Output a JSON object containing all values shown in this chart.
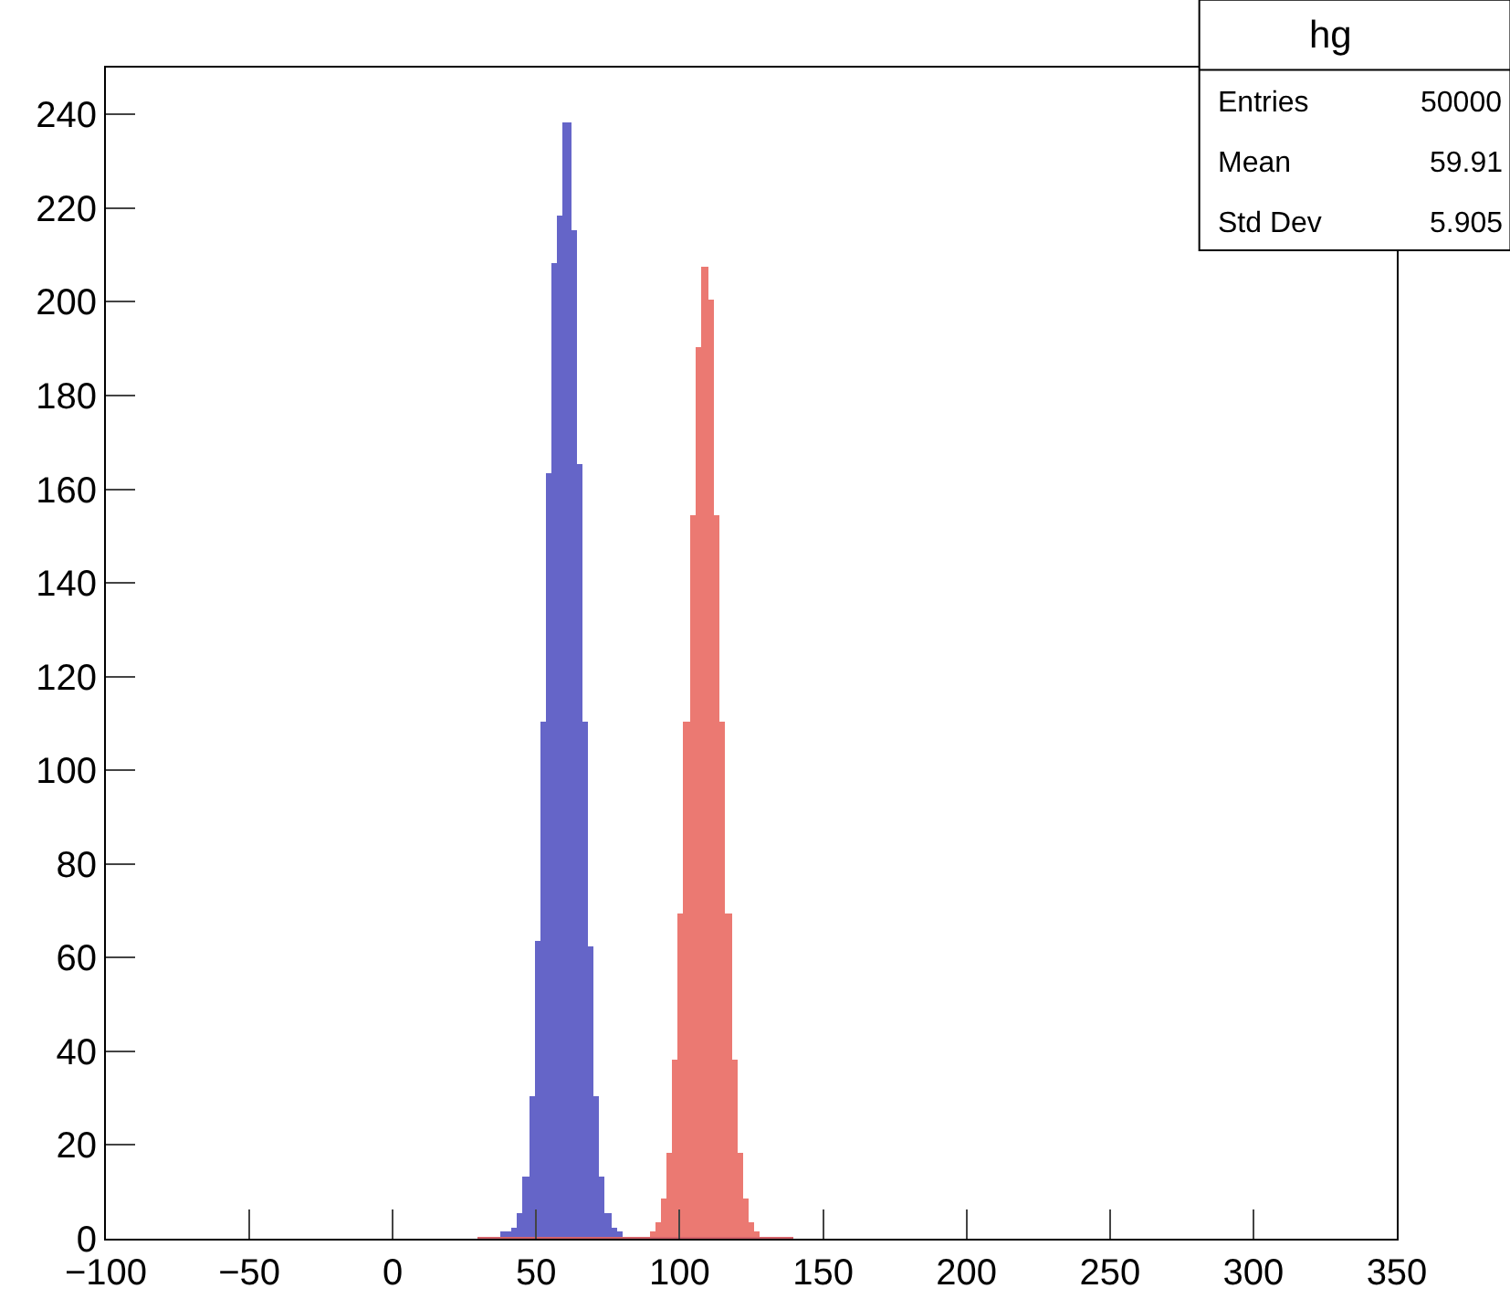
{
  "chart_data": {
    "type": "histogram",
    "bins": [
      30,
      32,
      34,
      36,
      38,
      40,
      42,
      44,
      46,
      48,
      50,
      52,
      54,
      56,
      58,
      60,
      62,
      64,
      66,
      68,
      70,
      72,
      74,
      76,
      78,
      80,
      82,
      84,
      86,
      88,
      90,
      92,
      94,
      96,
      98,
      100,
      102,
      104,
      106,
      108,
      110,
      112,
      114,
      116,
      118,
      120,
      122,
      124,
      126,
      128,
      130,
      132,
      134,
      136,
      138,
      140
    ],
    "series": [
      {
        "color": "#4b4bbf",
        "values": [
          0,
          0,
          0,
          0,
          1,
          1,
          2,
          5,
          13,
          30,
          63,
          110,
          163,
          208,
          218,
          238,
          215,
          165,
          110,
          62,
          30,
          13,
          5,
          2,
          1,
          0,
          0,
          0,
          0,
          0,
          0,
          0,
          0,
          0,
          0,
          0,
          0,
          0,
          0,
          0,
          0,
          0,
          0,
          0,
          0,
          0,
          0,
          0,
          0,
          0,
          0,
          0,
          0,
          0,
          0
        ]
      },
      {
        "color": "#e8625a",
        "values": [
          0,
          0,
          0,
          0,
          0,
          0,
          0,
          0,
          0,
          0,
          0,
          0,
          0,
          0,
          0,
          0,
          0,
          0,
          0,
          0,
          0,
          0,
          0,
          0,
          0,
          0,
          0,
          0,
          0,
          0,
          1,
          3,
          8,
          18,
          38,
          69,
          110,
          154,
          190,
          207,
          200,
          154,
          110,
          69,
          38,
          18,
          8,
          3,
          1,
          0,
          0,
          0,
          0,
          0,
          0
        ]
      }
    ],
    "xlim": [
      -100,
      350
    ],
    "xticks": [
      -100,
      -50,
      0,
      50,
      100,
      150,
      200,
      250,
      300,
      350
    ],
    "ylim": [
      0,
      250
    ],
    "yticks": [
      0,
      20,
      40,
      60,
      80,
      100,
      120,
      140,
      160,
      180,
      200,
      220,
      240
    ],
    "annotations": [
      "hg",
      "Entries",
      "50000",
      "Mean",
      "59.91",
      "Std Dev",
      "5.905"
    ]
  }
}
